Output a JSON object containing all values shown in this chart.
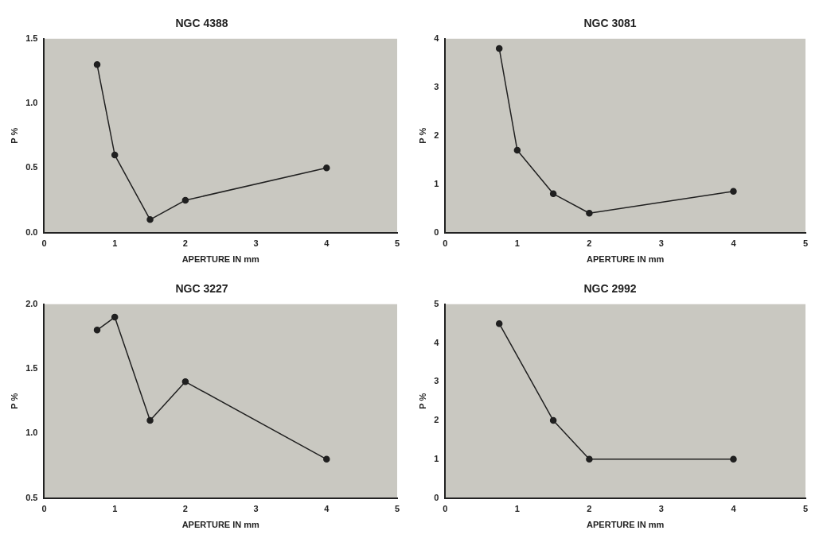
{
  "chart_data": [
    {
      "type": "line",
      "title": "NGC 4388",
      "xlabel": "APERTURE IN mm",
      "ylabel": "P %",
      "x": [
        0.75,
        1,
        1.5,
        2,
        4
      ],
      "values": [
        1.3,
        0.6,
        0.1,
        0.25,
        0.5
      ],
      "color": "#202020",
      "xlim": [
        0,
        5
      ],
      "xticks": [
        0,
        1,
        2,
        3,
        4,
        5
      ],
      "ylim": [
        0,
        1.5
      ],
      "yticks": [
        {
          "value": 0,
          "label": "0.0"
        },
        {
          "value": 0.5,
          "label": "0.5"
        },
        {
          "value": 1,
          "label": "1.0"
        },
        {
          "value": 1.5,
          "label": "1.5"
        }
      ],
      "marker": "circle",
      "line_style": "solid",
      "grid": false,
      "legend": false
    },
    {
      "type": "line",
      "title": "NGC 3081",
      "xlabel": "APERTURE IN mm",
      "ylabel": "P %",
      "x": [
        0.75,
        1,
        1.5,
        2,
        4
      ],
      "values": [
        3.8,
        1.7,
        0.8,
        0.4,
        0.85
      ],
      "color": "#202020",
      "xlim": [
        0,
        5
      ],
      "xticks": [
        0,
        1,
        2,
        3,
        4,
        5
      ],
      "ylim": [
        0,
        4
      ],
      "yticks": [
        0,
        1,
        2,
        3,
        4
      ],
      "marker": "circle",
      "line_style": "solid",
      "grid": false,
      "legend": false
    },
    {
      "type": "line",
      "title": "NGC 3227",
      "xlabel": "APERTURE IN mm",
      "ylabel": "P %",
      "x": [
        0.75,
        1,
        1.5,
        2,
        4
      ],
      "values": [
        1.8,
        1.9,
        1.1,
        1.4,
        0.8
      ],
      "color": "#202020",
      "xlim": [
        0,
        5
      ],
      "xticks": [
        0,
        1,
        2,
        3,
        4,
        5
      ],
      "ylim": [
        0.5,
        2
      ],
      "yticks": [
        {
          "value": 0.5,
          "label": "0.5"
        },
        {
          "value": 1,
          "label": "1.0"
        },
        {
          "value": 1.5,
          "label": "1.5"
        },
        {
          "value": 2,
          "label": "2.0"
        }
      ],
      "marker": "circle",
      "line_style": "solid",
      "grid": false,
      "legend": false
    },
    {
      "type": "line",
      "title": "NGC 2992",
      "xlabel": "APERTURE IN mm",
      "ylabel": "P %",
      "x": [
        0.75,
        1.5,
        2,
        4
      ],
      "values": [
        4.5,
        2,
        1,
        1
      ],
      "color": "#202020",
      "xlim": [
        0,
        5
      ],
      "xticks": [
        0,
        1,
        2,
        3,
        4,
        5
      ],
      "ylim": [
        0,
        5
      ],
      "yticks": [
        0,
        1,
        2,
        3,
        4,
        5
      ],
      "marker": "circle",
      "line_style": "solid",
      "grid": false,
      "legend": false
    }
  ]
}
